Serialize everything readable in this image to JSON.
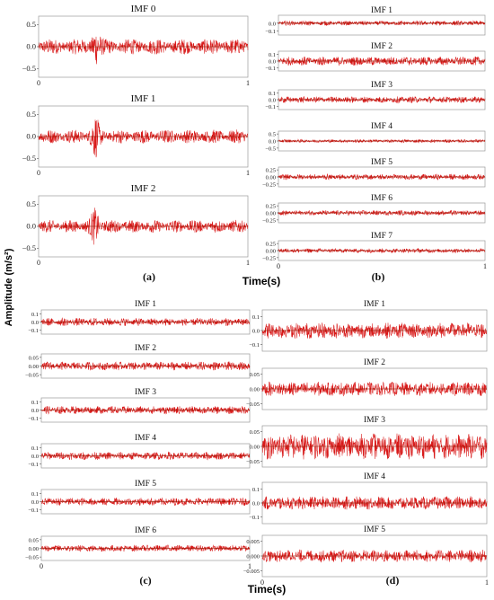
{
  "figure": {
    "ylabel": "Amplitude (m/s²)",
    "xlabel_top": "Time(s)",
    "xlabel_bottom": "Time(s)"
  },
  "colors": {
    "signal": "#d40000",
    "signal_dark": "#8a1a00",
    "frame": "#9a9a9a"
  },
  "chart_data": [
    {
      "panel": "(a)",
      "type": "line",
      "subplots": [
        {
          "title": "IMF 0",
          "yticks": [
            "0.5",
            "0.0",
            "−0.5"
          ],
          "ylim": [
            -0.7,
            0.7
          ],
          "amp": 0.18,
          "xticks": [
            "0",
            "1"
          ]
        },
        {
          "title": "IMF 1",
          "yticks": [
            "0.5",
            "0.0",
            "−0.5"
          ],
          "ylim": [
            -0.7,
            0.7
          ],
          "amp": 0.16,
          "xticks": [
            "0",
            "1"
          ]
        },
        {
          "title": "IMF 2",
          "yticks": [
            "0.5",
            "0.0",
            "−0.5"
          ],
          "ylim": [
            -0.7,
            0.7
          ],
          "amp": 0.15,
          "xticks": [
            "0",
            "1"
          ]
        }
      ]
    },
    {
      "panel": "(b)",
      "type": "line",
      "subplots": [
        {
          "title": "IMF 1",
          "yticks": [
            "0.0",
            "−0.1"
          ],
          "ylim": [
            -0.15,
            0.1
          ],
          "amp": 0.03,
          "xticks": []
        },
        {
          "title": "IMF 2",
          "yticks": [
            "0.1",
            "0.0",
            "−0.1"
          ],
          "ylim": [
            -0.15,
            0.15
          ],
          "amp": 0.07,
          "xticks": []
        },
        {
          "title": "IMF 3",
          "yticks": [
            "0.1",
            "0.0",
            "−0.1"
          ],
          "ylim": [
            -0.15,
            0.15
          ],
          "amp": 0.05,
          "xticks": []
        },
        {
          "title": "IMF 4",
          "yticks": [
            "0.5",
            "0.0",
            "−0.5"
          ],
          "ylim": [
            -0.7,
            0.7
          ],
          "amp": 0.12,
          "xticks": []
        },
        {
          "title": "IMF 5",
          "yticks": [
            "0.25",
            "0.00",
            "−0.25"
          ],
          "ylim": [
            -0.35,
            0.35
          ],
          "amp": 0.1,
          "xticks": []
        },
        {
          "title": "IMF 6",
          "yticks": [
            "0.25",
            "0.00",
            "−0.25"
          ],
          "ylim": [
            -0.35,
            0.35
          ],
          "amp": 0.09,
          "xticks": []
        },
        {
          "title": "IMF 7",
          "yticks": [
            "0.25",
            "0.00",
            "−0.25"
          ],
          "ylim": [
            -0.35,
            0.35
          ],
          "amp": 0.08,
          "xticks": [
            "0",
            "1"
          ]
        }
      ]
    },
    {
      "panel": "(c)",
      "type": "line",
      "subplots": [
        {
          "title": "IMF 1",
          "yticks": [
            "0.1",
            "0.0",
            "−0.1"
          ],
          "ylim": [
            -0.15,
            0.15
          ],
          "amp": 0.05,
          "xticks": []
        },
        {
          "title": "IMF 2",
          "yticks": [
            "0.05",
            "0.00",
            "−0.05"
          ],
          "ylim": [
            -0.07,
            0.07
          ],
          "amp": 0.025,
          "xticks": []
        },
        {
          "title": "IMF 3",
          "yticks": [
            "0.1",
            "0.0",
            "−0.1"
          ],
          "ylim": [
            -0.15,
            0.15
          ],
          "amp": 0.05,
          "xticks": []
        },
        {
          "title": "IMF 4",
          "yticks": [
            "0.1",
            "0.0",
            "−0.1"
          ],
          "ylim": [
            -0.15,
            0.15
          ],
          "amp": 0.05,
          "xticks": []
        },
        {
          "title": "IMF 5",
          "yticks": [
            "0.1",
            "0.0",
            "−0.1"
          ],
          "ylim": [
            -0.15,
            0.15
          ],
          "amp": 0.05,
          "xticks": []
        },
        {
          "title": "IMF 6",
          "yticks": [
            "0.05",
            "0.00",
            "−0.05"
          ],
          "ylim": [
            -0.07,
            0.07
          ],
          "amp": 0.02,
          "xticks": [
            "0",
            "1"
          ]
        }
      ]
    },
    {
      "panel": "(d)",
      "type": "line",
      "subplots": [
        {
          "title": "IMF 1",
          "yticks": [
            "0.1",
            "0.0",
            "−0.1"
          ],
          "ylim": [
            -0.15,
            0.15
          ],
          "amp": 0.06,
          "xticks": []
        },
        {
          "title": "IMF 2",
          "yticks": [
            "0.05",
            "0.00",
            "−0.05"
          ],
          "ylim": [
            -0.07,
            0.07
          ],
          "amp": 0.025,
          "xticks": []
        },
        {
          "title": "IMF 3",
          "yticks": [
            "0.05",
            "0.00",
            "−0.05"
          ],
          "ylim": [
            -0.07,
            0.07
          ],
          "amp": 0.045,
          "xticks": []
        },
        {
          "title": "IMF 4",
          "yticks": [
            "0.1",
            "0.0",
            "−0.1"
          ],
          "ylim": [
            -0.15,
            0.15
          ],
          "amp": 0.05,
          "xticks": []
        },
        {
          "title": "IMF 5",
          "yticks": [
            "0.005",
            "0.000",
            "−0.005"
          ],
          "ylim": [
            -0.007,
            0.007
          ],
          "amp": 0.0022,
          "xticks": [
            "0",
            "1"
          ]
        }
      ]
    }
  ]
}
